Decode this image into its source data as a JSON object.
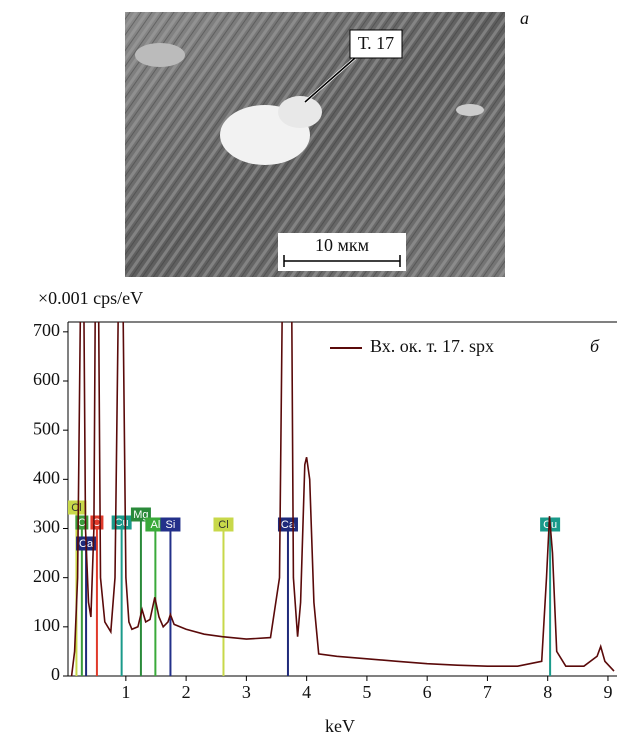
{
  "image": {
    "callout": "Т. 17",
    "scale_bar": "10 мкм",
    "panel": "а"
  },
  "chart_data": {
    "type": "line",
    "panel": "б",
    "y_label": "×0.001 cps/eV",
    "x_label": "keV",
    "xlim": [
      0.04,
      9.15
    ],
    "ylim": [
      0,
      720
    ],
    "xticks": [
      1,
      2,
      3,
      4,
      5,
      6,
      7,
      8,
      9
    ],
    "yticks": [
      0,
      100,
      200,
      300,
      400,
      500,
      600,
      700
    ],
    "grid": false,
    "legend": "upper right",
    "series": [
      {
        "name": "Вх. ок. т. 17. spx",
        "color": "#5a0a0a",
        "x": [
          0.1,
          0.15,
          0.2,
          0.25,
          0.3,
          0.33,
          0.38,
          0.42,
          0.47,
          0.5,
          0.54,
          0.58,
          0.65,
          0.75,
          0.82,
          0.88,
          0.95,
          1.0,
          1.05,
          1.1,
          1.2,
          1.27,
          1.33,
          1.4,
          1.48,
          1.55,
          1.62,
          1.7,
          1.74,
          1.8,
          2.0,
          2.3,
          2.6,
          3.0,
          3.4,
          3.55,
          3.6,
          3.75,
          3.78,
          3.85,
          3.9,
          3.97,
          4.0,
          4.05,
          4.12,
          4.2,
          4.5,
          5.0,
          5.5,
          6.0,
          6.5,
          7.0,
          7.5,
          7.9,
          7.98,
          8.03,
          8.08,
          8.15,
          8.3,
          8.6,
          8.82,
          8.88,
          8.95,
          9.1
        ],
        "values": [
          0,
          50,
          200,
          800,
          800,
          300,
          150,
          120,
          300,
          900,
          900,
          200,
          110,
          90,
          200,
          800,
          800,
          200,
          110,
          95,
          100,
          135,
          110,
          115,
          160,
          120,
          100,
          110,
          125,
          105,
          95,
          85,
          80,
          75,
          78,
          200,
          800,
          800,
          200,
          80,
          150,
          430,
          445,
          400,
          150,
          45,
          40,
          35,
          30,
          25,
          22,
          20,
          20,
          30,
          200,
          325,
          250,
          50,
          20,
          20,
          40,
          60,
          30,
          10
        ]
      }
    ],
    "markers": [
      {
        "label": "Cl",
        "x": 0.18,
        "color": "#c8d84a"
      },
      {
        "label": "C",
        "x": 0.27,
        "color": "#3a9a3a"
      },
      {
        "label": "Ca",
        "x": 0.34,
        "color": "#1f2a7a"
      },
      {
        "label": "O",
        "x": 0.52,
        "color": "#e03a2a"
      },
      {
        "label": "Cu",
        "x": 0.93,
        "color": "#1a9a8a"
      },
      {
        "label": "Mg",
        "x": 1.25,
        "color": "#2a8a3a"
      },
      {
        "label": "Al",
        "x": 1.49,
        "color": "#3aaa3a"
      },
      {
        "label": "Si",
        "x": 1.74,
        "color": "#23308a"
      },
      {
        "label": "Cl",
        "x": 2.62,
        "color": "#c8d84a"
      },
      {
        "label": "Ca",
        "x": 3.69,
        "color": "#1f2a7a"
      },
      {
        "label": "Cu",
        "x": 8.04,
        "color": "#1a9a8a"
      }
    ]
  }
}
